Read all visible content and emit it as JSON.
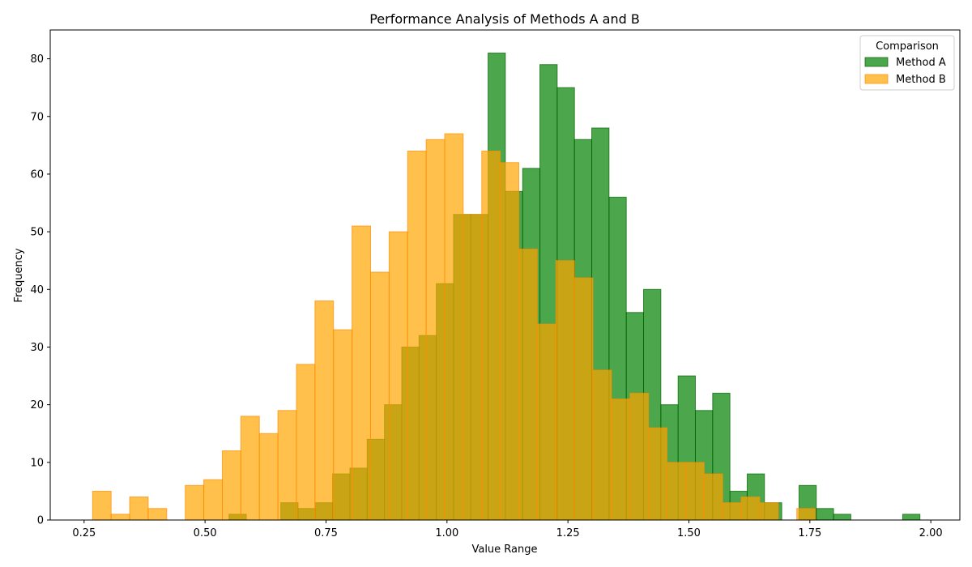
{
  "chart_data": {
    "type": "histogram",
    "title": "Performance Analysis of Methods A and B",
    "xlabel": "Value Range",
    "ylabel": "Frequency",
    "xlim": [
      0.18,
      2.06
    ],
    "ylim": [
      0,
      85
    ],
    "xticks": [
      0.25,
      0.5,
      0.75,
      1.0,
      1.25,
      1.5,
      1.75,
      2.0
    ],
    "xtick_labels": [
      "0.25",
      "0.50",
      "0.75",
      "1.00",
      "1.25",
      "1.50",
      "1.75",
      "2.00"
    ],
    "yticks": [
      0,
      10,
      20,
      30,
      40,
      50,
      60,
      70,
      80
    ],
    "ytick_labels": [
      "0",
      "10",
      "20",
      "30",
      "40",
      "50",
      "60",
      "70",
      "80"
    ],
    "grid": false,
    "legend": {
      "title": "Comparison",
      "placement": "top-right"
    },
    "series": [
      {
        "name": "Method A",
        "color": "#008000",
        "edge_color": "#006400",
        "alpha": 0.7,
        "bin_start": 0.5495,
        "bin_width": 0.0357,
        "counts": [
          1,
          0,
          0,
          3,
          2,
          3,
          8,
          9,
          14,
          20,
          30,
          32,
          41,
          53,
          53,
          81,
          57,
          61,
          79,
          75,
          66,
          68,
          56,
          36,
          40,
          20,
          25,
          19,
          22,
          5,
          8,
          3,
          0,
          6,
          2,
          1,
          0,
          0,
          0,
          1
        ]
      },
      {
        "name": "Method B",
        "color": "#FFA500",
        "edge_color": "#FF8C00",
        "alpha": 0.7,
        "bin_start": 0.2676,
        "bin_width": 0.0383,
        "counts": [
          5,
          1,
          4,
          2,
          0,
          6,
          7,
          12,
          18,
          15,
          19,
          27,
          38,
          33,
          51,
          43,
          50,
          64,
          66,
          67,
          53,
          64,
          62,
          47,
          34,
          45,
          42,
          26,
          21,
          22,
          16,
          10,
          10,
          8,
          3,
          4,
          3,
          0,
          2
        ]
      }
    ]
  }
}
